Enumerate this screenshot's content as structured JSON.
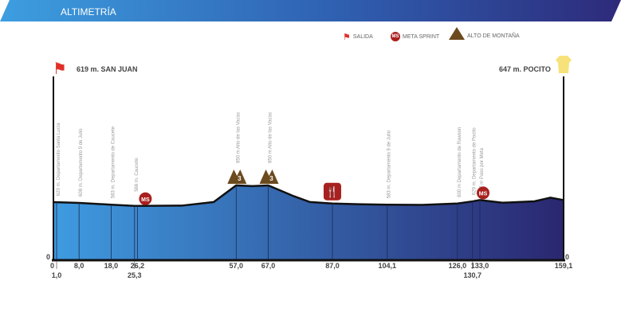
{
  "header": {
    "title": "ALTIMETRÍA"
  },
  "legend": [
    {
      "icon": "red-flag-icon",
      "label": "SALIDA"
    },
    {
      "icon": "meta-sprint-icon",
      "label": "META SPRINT"
    },
    {
      "icon": "mountain-icon",
      "label": "ALTO DE MONTAÑA"
    }
  ],
  "start": {
    "label": "619 m. SAN JUAN"
  },
  "finish": {
    "label": "647 m. POCITO"
  },
  "colors": {
    "flag": "#e0302a",
    "sprint": "#a8201f",
    "mountain": "#6b4a1e",
    "jersey": "#f7e27a",
    "profile_start": "#3f9be0",
    "profile_end": "#2a2770"
  },
  "chart_data": {
    "type": "area",
    "xlim": [
      0,
      159.1
    ],
    "y_zero_label": "0",
    "y_end_label": "0",
    "profile": [
      [
        0,
        619
      ],
      [
        8,
        608
      ],
      [
        18,
        583
      ],
      [
        25.3,
        566
      ],
      [
        26.2,
        566
      ],
      [
        40,
        570
      ],
      [
        50,
        620
      ],
      [
        57,
        850
      ],
      [
        62,
        840
      ],
      [
        67,
        850
      ],
      [
        75,
        700
      ],
      [
        80,
        620
      ],
      [
        87,
        600
      ],
      [
        95,
        590
      ],
      [
        104.1,
        583
      ],
      [
        115,
        580
      ],
      [
        126,
        600
      ],
      [
        130.7,
        629
      ],
      [
        133,
        647
      ],
      [
        140,
        610
      ],
      [
        150,
        630
      ],
      [
        155,
        680
      ],
      [
        159.1,
        647
      ]
    ],
    "ticks": [
      {
        "km": 0,
        "label": "0",
        "row": 1
      },
      {
        "km": 1,
        "label": "1,0",
        "row": 2
      },
      {
        "km": 8,
        "label": "8,0",
        "row": 1
      },
      {
        "km": 18,
        "label": "18,0",
        "row": 1
      },
      {
        "km": 25.3,
        "label": "25,3",
        "row": 2
      },
      {
        "km": 26.2,
        "label": "26,2",
        "row": 1
      },
      {
        "km": 57,
        "label": "57,0",
        "row": 1
      },
      {
        "km": 67,
        "label": "67,0",
        "row": 1
      },
      {
        "km": 87,
        "label": "87,0",
        "row": 1
      },
      {
        "km": 104.1,
        "label": "104,1",
        "row": 1
      },
      {
        "km": 126,
        "label": "126,0",
        "row": 1
      },
      {
        "km": 130.7,
        "label": "130,7",
        "row": 2
      },
      {
        "km": 133,
        "label": "133,0",
        "row": 1
      },
      {
        "km": 159.1,
        "label": "159,1",
        "row": 1
      }
    ],
    "waypoints": [
      {
        "km": 1,
        "label": "620 m. Departamento Santa Lucía"
      },
      {
        "km": 8,
        "label": "608 m. Departamento 9 de Julio"
      },
      {
        "km": 18,
        "label": "583 m. Departamento de Caucete"
      },
      {
        "km": 25.3,
        "label": "566 m. Caucete"
      },
      {
        "km": 57,
        "label": "850 m Alto de las Vacas"
      },
      {
        "km": 67,
        "label": "850 m Alto de las Vacas"
      },
      {
        "km": 104.1,
        "label": "583 m. Departamento 9 de Julio"
      },
      {
        "km": 126,
        "label": "600 m Departamento de Rawson"
      },
      {
        "km": 130.7,
        "label": "629 m. Departamento de Pocito"
      },
      {
        "km": 133,
        "label": "647 m Paso por Meta"
      }
    ],
    "markers": [
      {
        "km": 26.2,
        "type": "sprint",
        "label": "MS"
      },
      {
        "km": 133,
        "type": "sprint",
        "label": "MS"
      },
      {
        "km": 57,
        "type": "mountain",
        "label": "3"
      },
      {
        "km": 67,
        "type": "mountain",
        "label": "3"
      },
      {
        "km": 87,
        "type": "feed",
        "label": ""
      }
    ]
  }
}
